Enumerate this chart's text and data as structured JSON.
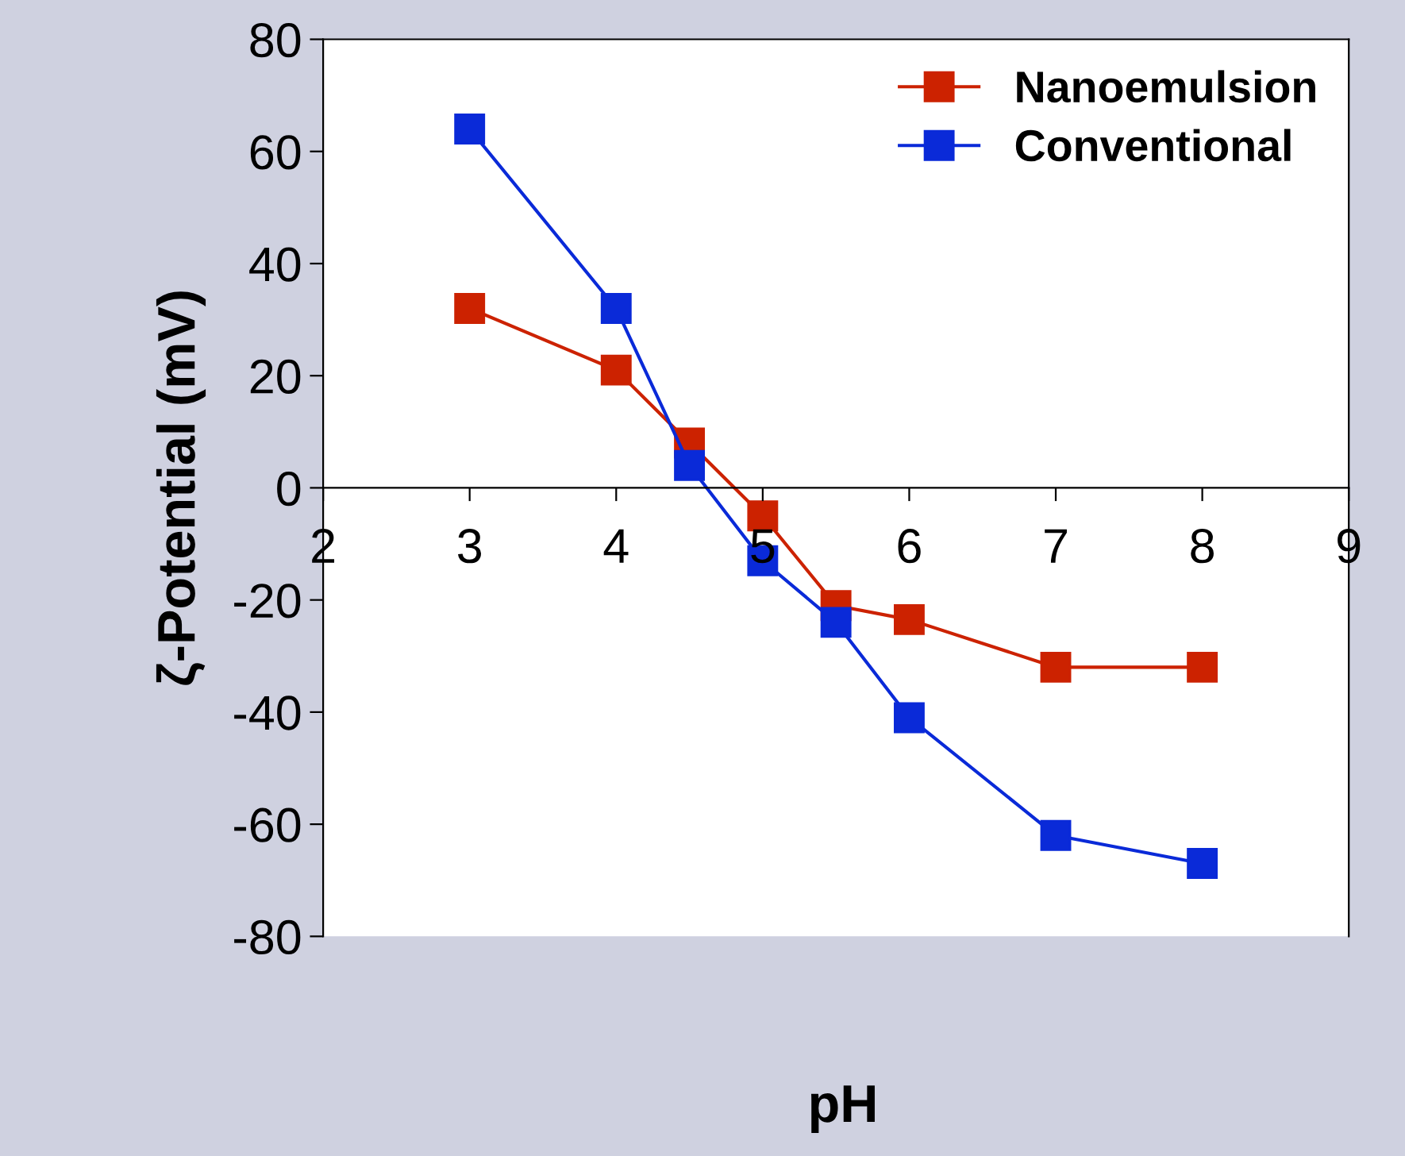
{
  "chart_data": {
    "type": "line",
    "xlabel": "pH",
    "ylabel": "ζ-Potential (mV)",
    "xlim": [
      2,
      9
    ],
    "xticks": [
      2,
      3,
      4,
      5,
      6,
      7,
      8,
      9
    ],
    "ylim": [
      -80,
      80
    ],
    "yticks": [
      -80,
      -60,
      -40,
      -20,
      0,
      20,
      40,
      60,
      80
    ],
    "marker": "square",
    "line_style": "solid",
    "grid": false,
    "legend": "top right",
    "series": [
      {
        "name": "Nanoemulsion",
        "color": "#cc2200",
        "x": [
          3,
          4,
          4.5,
          5,
          5.5,
          6,
          7,
          8
        ],
        "values": [
          32,
          21,
          8,
          -5,
          -21,
          -23.5,
          -32,
          -32
        ]
      },
      {
        "name": "Conventional",
        "color": "#0a2ad8",
        "x": [
          3,
          4,
          4.5,
          5,
          5.5,
          6,
          7,
          8
        ],
        "values": [
          64,
          32,
          4,
          -13,
          -24,
          -41,
          -62,
          -67
        ]
      }
    ]
  }
}
